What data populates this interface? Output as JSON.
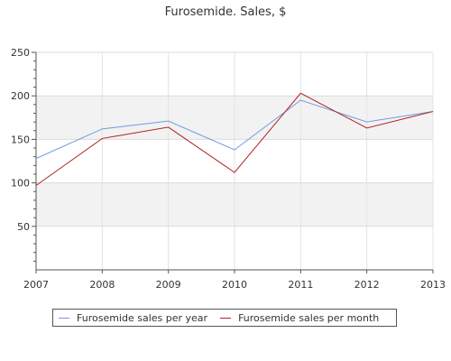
{
  "chart_data": {
    "type": "line",
    "title": "Furosemide. Sales, $",
    "xlabel": "",
    "ylabel": "",
    "categories": [
      "2007",
      "2008",
      "2009",
      "2010",
      "2011",
      "2012",
      "2013"
    ],
    "ylim": [
      0,
      250
    ],
    "yticks": [
      "50",
      "100",
      "150",
      "200",
      "250"
    ],
    "grid": true,
    "legend_position": "bottom",
    "series": [
      {
        "name": "Furosemide sales per year",
        "color": "#6f9be0",
        "values": [
          128,
          162,
          171,
          138,
          195,
          170,
          182
        ]
      },
      {
        "name": "Furosemide sales per month",
        "color": "#b22222",
        "values": [
          97,
          151,
          164,
          112,
          203,
          163,
          182
        ]
      }
    ]
  }
}
